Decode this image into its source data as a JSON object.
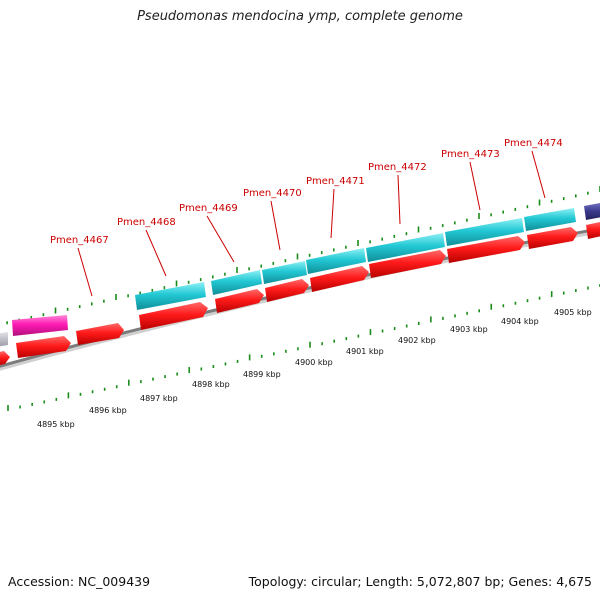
{
  "title": "Pseudomonas mendocina ymp, complete genome",
  "footer": {
    "accession": "Accession: NC_009439",
    "summary": "Topology: circular; Length: 5,072,807 bp; Genes: 4,675"
  },
  "colors": {
    "cds_red": "#ff1a1a",
    "gene_cyan": "#22c8d4",
    "gene_magenta": "#ff1ab4",
    "gene_purple": "#3c3a8c",
    "gene_gray": "#b0b0b8",
    "backbone": "#8c8c8c",
    "tick_green": "#1a8c1a",
    "label_red": "#cc0000"
  },
  "gene_labels": [
    {
      "name": "Pmen_4467"
    },
    {
      "name": "Pmen_4468"
    },
    {
      "name": "Pmen_4469"
    },
    {
      "name": "Pmen_4470"
    },
    {
      "name": "Pmen_4471"
    },
    {
      "name": "Pmen_4472"
    },
    {
      "name": "Pmen_4473"
    },
    {
      "name": "Pmen_4474"
    }
  ],
  "kbp_labels": [
    {
      "text": "4895 kbp"
    },
    {
      "text": "4896 kbp"
    },
    {
      "text": "4897 kbp"
    },
    {
      "text": "4898 kbp"
    },
    {
      "text": "4899 kbp"
    },
    {
      "text": "4900 kbp"
    },
    {
      "text": "4901 kbp"
    },
    {
      "text": "4902 kbp"
    },
    {
      "text": "4903 kbp"
    },
    {
      "text": "4904 kbp"
    },
    {
      "text": "4905 kbp"
    }
  ]
}
